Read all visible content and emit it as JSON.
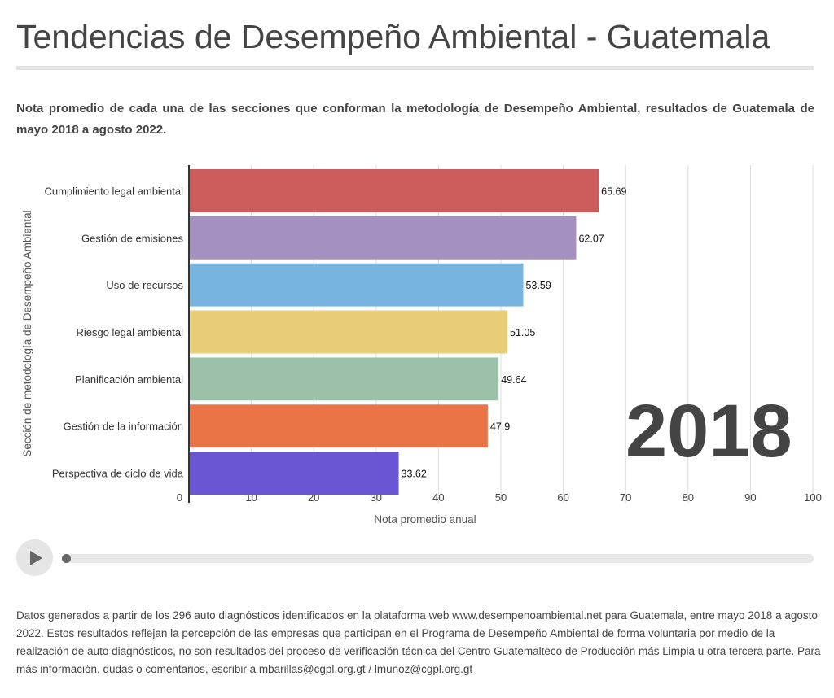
{
  "title": "Tendencias de Desempeño Ambiental - Guatemala",
  "subtitle": "Nota promedio de cada una de las secciones que conforman la metodología de Desempeño Ambiental, resultados de Guatemala de mayo 2018 a agosto 2022.",
  "year_label": "2018",
  "footer": "Datos generados a partir de los 296 auto diagnósticos identificados en la plataforma web www.desempenoambiental.net para Guatemala, entre mayo 2018 a agosto 2022.  Estos resultados reflejan la percepción de las empresas que participan en el Programa de Desempeño Ambiental de forma voluntaria por medio de la realización de auto diagnósticos, no son resultados del proceso de verificación técnica del Centro Guatemalteco de Producción más Limpia u otra tercera parte.  Para más información, dudas o comentarios, escribir a mbarillas@cgpl.org.gt / lmunoz@cgpl.org.gt",
  "player": {
    "icon": "play-icon",
    "progress": 0
  },
  "chart_data": {
    "type": "bar",
    "orientation": "horizontal",
    "categories": [
      "Cumplimiento legal ambiental",
      "Gestión de emisiones",
      "Uso de recursos",
      "Riesgo legal ambiental",
      "Planificación ambiental",
      "Gestión de la información",
      "Perspectiva de ciclo de vida"
    ],
    "values": [
      65.69,
      62.07,
      53.59,
      51.05,
      49.64,
      47.9,
      33.62
    ],
    "value_labels": [
      "65.69",
      "62.07",
      "53.59",
      "51.05",
      "49.64",
      "47.9",
      "33.62"
    ],
    "colors": [
      "#cc5b5b",
      "#a591bf",
      "#78b4e0",
      "#e8cc77",
      "#9bc2a8",
      "#eb7447",
      "#6a55d3"
    ],
    "xlabel": "Nota promedio anual",
    "ylabel": "Sección de metodología de Desempeño Ambiental",
    "xlim": [
      0,
      100
    ],
    "xticks": [
      "0",
      "10",
      "20",
      "30",
      "40",
      "50",
      "60",
      "70",
      "80",
      "90",
      "100"
    ],
    "grid": true
  }
}
